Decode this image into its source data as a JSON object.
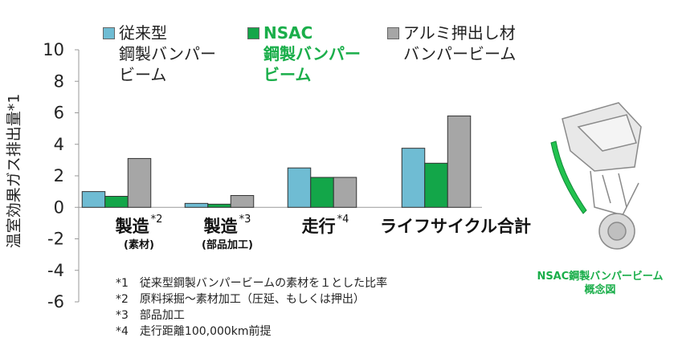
{
  "colors": {
    "series1": "#6fbcd3",
    "series2": "#13a649",
    "series3": "#a6a6a6",
    "accent_text": "#1aae4a"
  },
  "chart_data": {
    "type": "bar",
    "ylabel": "温室効果ガス排出量*1",
    "ylim": [
      -6,
      10
    ],
    "yticks": [
      10,
      8,
      6,
      4,
      2,
      0,
      -2,
      -4,
      -6
    ],
    "ytick_labels": [
      "10",
      "8",
      "6",
      "4",
      "2",
      "0",
      "-2",
      "-4",
      "-6"
    ],
    "grid": false,
    "legend_position": "top",
    "categories": [
      {
        "label": "製造",
        "sup": "*2",
        "sub": "(素材)"
      },
      {
        "label": "製造",
        "sup": "*3",
        "sub": "(部品加工)"
      },
      {
        "label": "走行",
        "sup": "*4",
        "sub": ""
      },
      {
        "label": "ライフサイクル合計",
        "sup": "",
        "sub": ""
      }
    ],
    "series": [
      {
        "name": "従来型\n鋼製バンパー\nビーム",
        "color": "#6fbcd3",
        "values": [
          1.0,
          0.25,
          2.5,
          3.75
        ]
      },
      {
        "name": "NSAC\n鋼製バンパー\nビーム",
        "color": "#13a649",
        "values": [
          0.7,
          0.2,
          1.9,
          2.8
        ]
      },
      {
        "name": "アルミ押出し材\nバンパービーム",
        "color": "#a6a6a6",
        "values": [
          3.1,
          0.75,
          1.9,
          5.8
        ]
      }
    ]
  },
  "notes": [
    "*1　従来型鋼製バンパービームの素材を１とした比率",
    "*2　原料採掘～素材加工（圧延、もしくは押出）",
    "*3　部品加工",
    "*4　走行距離100,000km前提"
  ],
  "concept": {
    "caption": "NSAC鋼製バンパービーム\n概念図"
  }
}
